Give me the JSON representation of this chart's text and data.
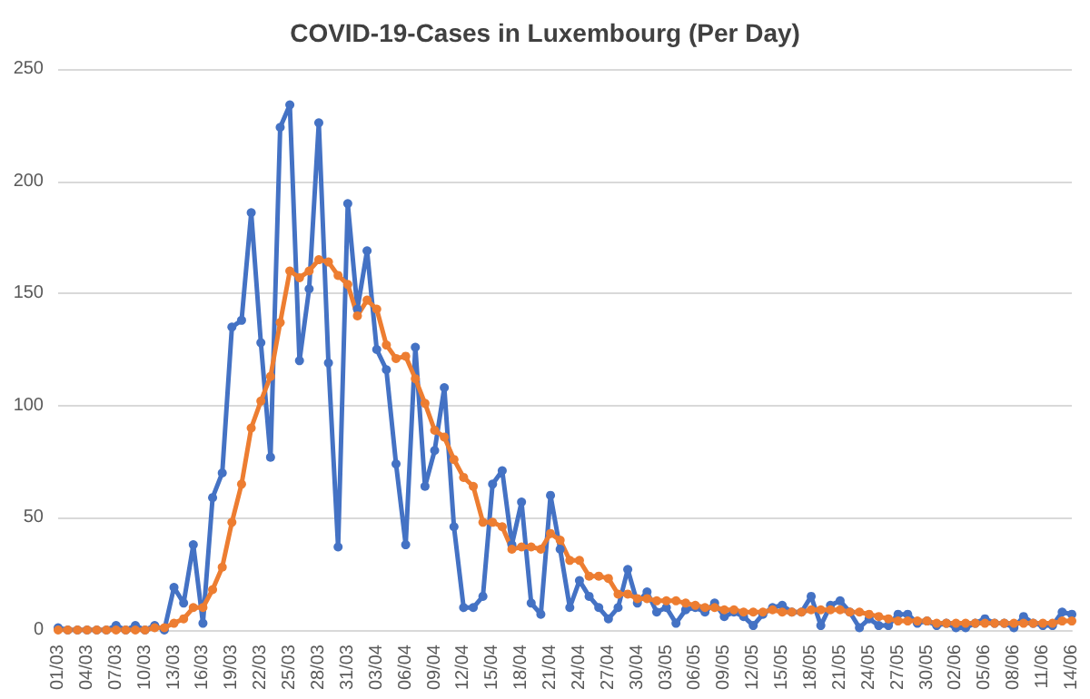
{
  "chart_data": {
    "type": "line",
    "title": "COVID-19-Cases in Luxembourg (Per Day)",
    "categories": [
      "01/03",
      null,
      null,
      "04/03",
      null,
      null,
      "07/03",
      null,
      null,
      "10/03",
      null,
      null,
      "13/03",
      null,
      null,
      "16/03",
      null,
      null,
      "19/03",
      null,
      null,
      "22/03",
      null,
      null,
      "25/03",
      null,
      null,
      "28/03",
      null,
      null,
      "31/03",
      null,
      null,
      "03/04",
      null,
      null,
      "06/04",
      null,
      null,
      "09/04",
      null,
      null,
      "12/04",
      null,
      null,
      "15/04",
      null,
      null,
      "18/04",
      null,
      null,
      "21/04",
      null,
      null,
      "24/04",
      null,
      null,
      "27/04",
      null,
      null,
      "30/04",
      null,
      null,
      "03/05",
      null,
      null,
      "06/05",
      null,
      null,
      "09/05",
      null,
      null,
      "12/05",
      null,
      null,
      "15/05",
      null,
      null,
      "18/05",
      null,
      null,
      "21/05",
      null,
      null,
      "24/05",
      null,
      null,
      "27/05",
      null,
      null,
      "30/05",
      null,
      null,
      "02/06",
      null,
      null,
      "05/06",
      null,
      null,
      "08/06",
      null,
      null,
      "11/06",
      null,
      null,
      "14/06"
    ],
    "series": [
      {
        "color": "#4472c4",
        "values": [
          1,
          0,
          0,
          0,
          0,
          0,
          2,
          0,
          2,
          0,
          2,
          0,
          19,
          12,
          38,
          3,
          59,
          70,
          135,
          138,
          186,
          128,
          77,
          224,
          234,
          120,
          152,
          226,
          119,
          37,
          190,
          143,
          169,
          125,
          116,
          74,
          38,
          126,
          64,
          80,
          108,
          46,
          10,
          10,
          15,
          65,
          71,
          38,
          57,
          12,
          7,
          60,
          36,
          10,
          22,
          15,
          10,
          5,
          10,
          27,
          12,
          17,
          8,
          10,
          3,
          9,
          10,
          8,
          12,
          6,
          8,
          6,
          2,
          7,
          10,
          11,
          8,
          8,
          15,
          2,
          11,
          13,
          8,
          1,
          5,
          2,
          2,
          7,
          7,
          3,
          4,
          2,
          3,
          1,
          1,
          3,
          5,
          3,
          3,
          1,
          6,
          3,
          2,
          2,
          8,
          7
        ]
      },
      {
        "color": "#ed7d31",
        "values": [
          0,
          0,
          0,
          0,
          0,
          0,
          0,
          0,
          0,
          0,
          1,
          1,
          3,
          5,
          10,
          10,
          18,
          28,
          48,
          65,
          90,
          102,
          113,
          137,
          160,
          157,
          160,
          165,
          164,
          158,
          154,
          140,
          147,
          143,
          127,
          121,
          122,
          112,
          101,
          89,
          86,
          76,
          68,
          64,
          48,
          48,
          46,
          36,
          37,
          37,
          36,
          43,
          40,
          31,
          31,
          24,
          24,
          23,
          16,
          16,
          14,
          14,
          13,
          13,
          13,
          12,
          11,
          10,
          10,
          9,
          9,
          8,
          8,
          8,
          9,
          8,
          8,
          8,
          9,
          9,
          9,
          9,
          8,
          8,
          7,
          6,
          5,
          4,
          4,
          4,
          4,
          3,
          3,
          3,
          3,
          3,
          3,
          3,
          3,
          3,
          3,
          3,
          3,
          3,
          4,
          4
        ]
      }
    ],
    "ylim": [
      0,
      250
    ],
    "yticks": [
      0,
      50,
      100,
      150,
      200,
      250
    ],
    "grid": "y",
    "marker": "circle"
  }
}
